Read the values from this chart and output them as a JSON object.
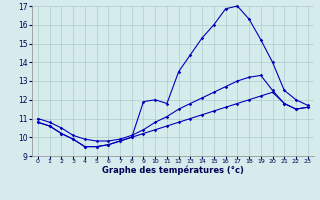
{
  "xlabel": "Graphe des températures (°c)",
  "xlim_min": -0.5,
  "xlim_max": 23.5,
  "ylim_min": 9,
  "ylim_max": 17,
  "yticks": [
    9,
    10,
    11,
    12,
    13,
    14,
    15,
    16,
    17
  ],
  "xticks": [
    0,
    1,
    2,
    3,
    4,
    5,
    6,
    7,
    8,
    9,
    10,
    11,
    12,
    13,
    14,
    15,
    16,
    17,
    18,
    19,
    20,
    21,
    22,
    23
  ],
  "bg_color": "#d6ecec",
  "grid_color": "#b0cccc",
  "line_color": "#0000bb",
  "line1_x": [
    0,
    1,
    2,
    3,
    4,
    5,
    6,
    7,
    8,
    9,
    10,
    11,
    12,
    13,
    14,
    15,
    16,
    17,
    18,
    19,
    20,
    21,
    22,
    23
  ],
  "line1_y": [
    10.8,
    10.6,
    10.2,
    9.9,
    9.5,
    9.5,
    9.6,
    9.8,
    10.0,
    11.9,
    12.0,
    11.8,
    13.5,
    14.4,
    15.3,
    16.0,
    16.85,
    17.0,
    16.3,
    15.2,
    14.0,
    12.5,
    12.0,
    11.7
  ],
  "line2_x": [
    0,
    1,
    2,
    3,
    4,
    5,
    6,
    7,
    8,
    9,
    10,
    11,
    12,
    13,
    14,
    15,
    16,
    17,
    18,
    19,
    20,
    21,
    22,
    23
  ],
  "line2_y": [
    11.0,
    10.8,
    10.5,
    10.1,
    9.9,
    9.8,
    9.8,
    9.9,
    10.1,
    10.4,
    10.8,
    11.1,
    11.5,
    11.8,
    12.1,
    12.4,
    12.7,
    13.0,
    13.2,
    13.3,
    12.5,
    11.8,
    11.5,
    11.6
  ],
  "line3_x": [
    0,
    1,
    2,
    3,
    4,
    5,
    6,
    7,
    8,
    9,
    10,
    11,
    12,
    13,
    14,
    15,
    16,
    17,
    18,
    19,
    20,
    21,
    22,
    23
  ],
  "line3_y": [
    10.8,
    10.6,
    10.2,
    9.9,
    9.5,
    9.5,
    9.6,
    9.8,
    10.0,
    10.2,
    10.4,
    10.6,
    10.8,
    11.0,
    11.2,
    11.4,
    11.6,
    11.8,
    12.0,
    12.2,
    12.4,
    11.8,
    11.5,
    11.6
  ]
}
